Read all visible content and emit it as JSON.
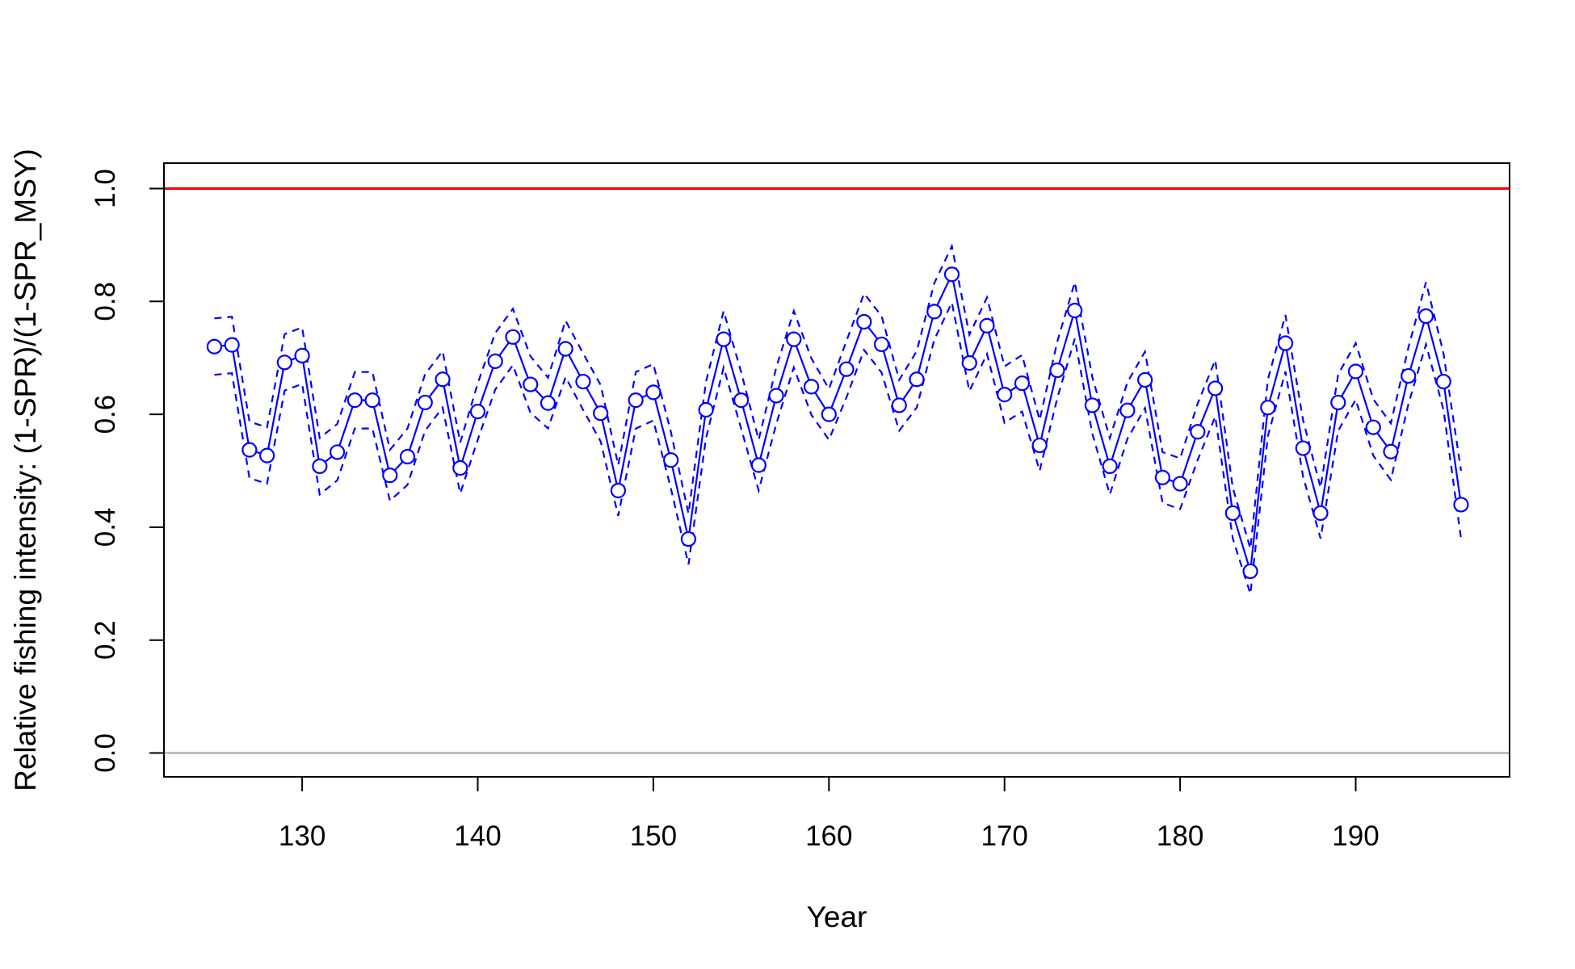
{
  "chart_data": {
    "type": "line",
    "title": "",
    "xlabel": "Year",
    "ylabel": "Relative fishing intensity: (1-SPR)/(1-SPR_MSY)",
    "xlim": [
      125,
      196
    ],
    "ylim": [
      0,
      1
    ],
    "x_ticks": [
      "130",
      "140",
      "150",
      "160",
      "170",
      "180",
      "190"
    ],
    "y_ticks": [
      "0.0",
      "0.2",
      "0.4",
      "0.6",
      "0.8",
      "1.0"
    ],
    "grid": false,
    "legend": "none",
    "reference_lines": [
      {
        "y": 1.0,
        "color": "#ff0000"
      },
      {
        "y": 0.0,
        "color": "#bebebe"
      }
    ],
    "series": [
      {
        "color": "#0000ff",
        "style": "solid line with open circles",
        "x": [
          125,
          126,
          127,
          128,
          129,
          130,
          131,
          132,
          133,
          134,
          135,
          136,
          137,
          138,
          139,
          140,
          141,
          142,
          143,
          144,
          145,
          146,
          147,
          148,
          149,
          150,
          151,
          152,
          153,
          154,
          155,
          156,
          157,
          158,
          159,
          160,
          161,
          162,
          163,
          164,
          165,
          166,
          167,
          168,
          169,
          170,
          171,
          172,
          173,
          174,
          175,
          176,
          177,
          178,
          179,
          180,
          181,
          182,
          183,
          184,
          185,
          186,
          187,
          188,
          189,
          190,
          191,
          192,
          193,
          194,
          195,
          196
        ],
        "y": [
          0.72,
          0.723,
          0.537,
          0.527,
          0.692,
          0.704,
          0.508,
          0.533,
          0.625,
          0.625,
          0.492,
          0.525,
          0.621,
          0.662,
          0.505,
          0.605,
          0.694,
          0.737,
          0.653,
          0.62,
          0.716,
          0.658,
          0.602,
          0.465,
          0.625,
          0.639,
          0.519,
          0.379,
          0.608,
          0.733,
          0.625,
          0.51,
          0.633,
          0.733,
          0.649,
          0.6,
          0.68,
          0.764,
          0.724,
          0.616,
          0.662,
          0.782,
          0.848,
          0.691,
          0.757,
          0.635,
          0.655,
          0.545,
          0.678,
          0.784,
          0.616,
          0.508,
          0.607,
          0.661,
          0.488,
          0.477,
          0.569,
          0.646,
          0.425,
          0.322,
          0.612,
          0.726,
          0.54,
          0.425,
          0.621,
          0.676,
          0.577,
          0.534,
          0.668,
          0.774,
          0.658,
          0.44
        ],
        "lower": [
          0.67,
          0.673,
          0.487,
          0.477,
          0.642,
          0.654,
          0.458,
          0.483,
          0.575,
          0.575,
          0.447,
          0.475,
          0.571,
          0.612,
          0.46,
          0.555,
          0.644,
          0.687,
          0.603,
          0.575,
          0.666,
          0.608,
          0.552,
          0.42,
          0.575,
          0.589,
          0.469,
          0.334,
          0.558,
          0.683,
          0.575,
          0.465,
          0.583,
          0.683,
          0.599,
          0.555,
          0.63,
          0.714,
          0.674,
          0.571,
          0.612,
          0.732,
          0.798,
          0.641,
          0.707,
          0.585,
          0.605,
          0.5,
          0.628,
          0.734,
          0.566,
          0.458,
          0.557,
          0.611,
          0.443,
          0.432,
          0.519,
          0.596,
          0.38,
          0.282,
          0.562,
          0.676,
          0.49,
          0.38,
          0.571,
          0.626,
          0.527,
          0.484,
          0.618,
          0.724,
          0.608,
          0.38
        ],
        "upper": [
          0.77,
          0.773,
          0.587,
          0.577,
          0.742,
          0.754,
          0.558,
          0.583,
          0.675,
          0.675,
          0.537,
          0.575,
          0.671,
          0.712,
          0.55,
          0.655,
          0.744,
          0.787,
          0.703,
          0.665,
          0.766,
          0.708,
          0.652,
          0.51,
          0.675,
          0.689,
          0.569,
          0.424,
          0.658,
          0.783,
          0.675,
          0.555,
          0.683,
          0.783,
          0.699,
          0.645,
          0.73,
          0.814,
          0.774,
          0.661,
          0.712,
          0.832,
          0.898,
          0.741,
          0.807,
          0.685,
          0.705,
          0.59,
          0.728,
          0.834,
          0.666,
          0.558,
          0.657,
          0.711,
          0.533,
          0.522,
          0.619,
          0.696,
          0.47,
          0.362,
          0.662,
          0.776,
          0.59,
          0.47,
          0.671,
          0.726,
          0.627,
          0.584,
          0.718,
          0.834,
          0.708,
          0.5
        ]
      }
    ]
  }
}
